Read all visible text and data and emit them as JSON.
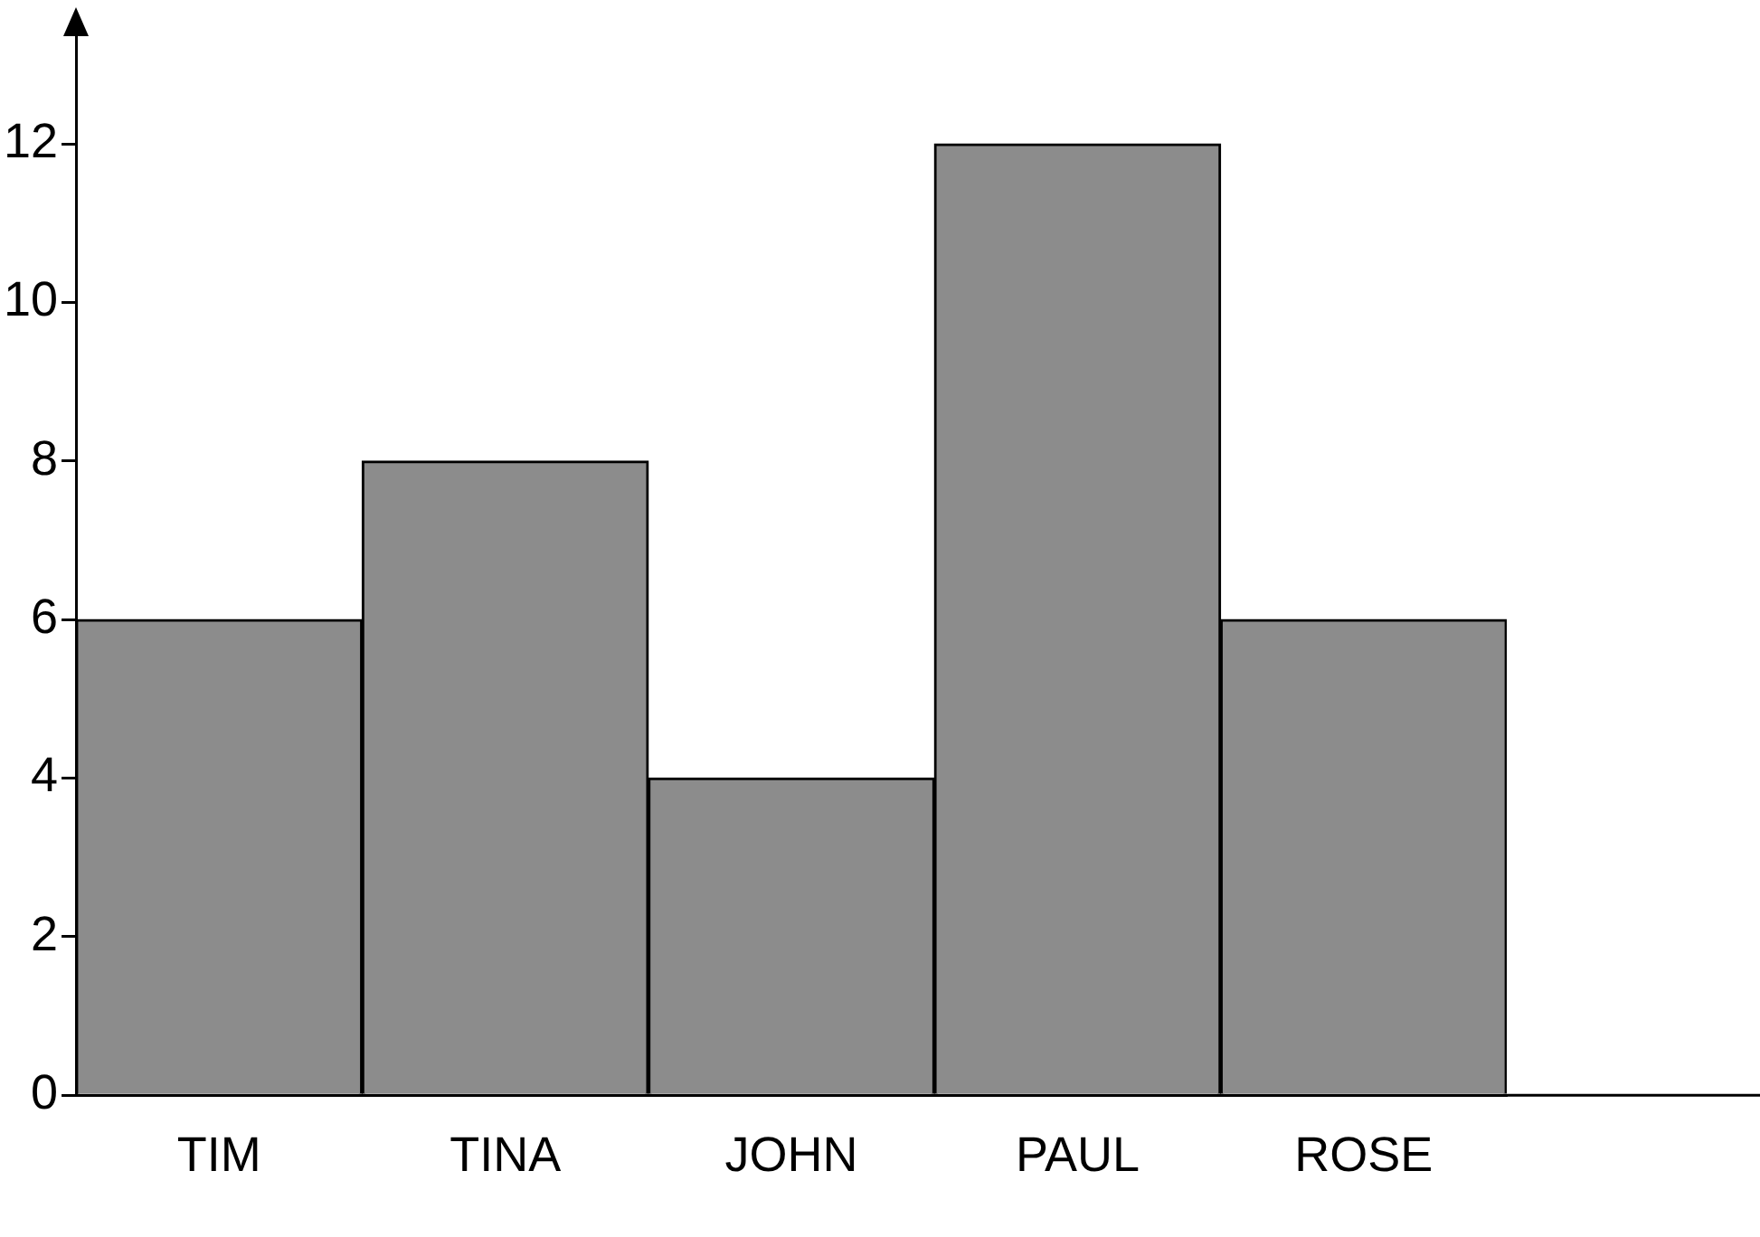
{
  "chart_data": {
    "type": "bar",
    "categories": [
      "TIM",
      "TINA",
      "JOHN",
      "PAUL",
      "ROSE"
    ],
    "values": [
      6,
      8,
      4,
      12,
      6
    ],
    "color": "#8c8c8c",
    "ylim": [
      0,
      13.4
    ],
    "yticks": [
      0,
      2,
      4,
      6,
      8,
      10,
      12
    ],
    "grid": false,
    "legend": false
  }
}
